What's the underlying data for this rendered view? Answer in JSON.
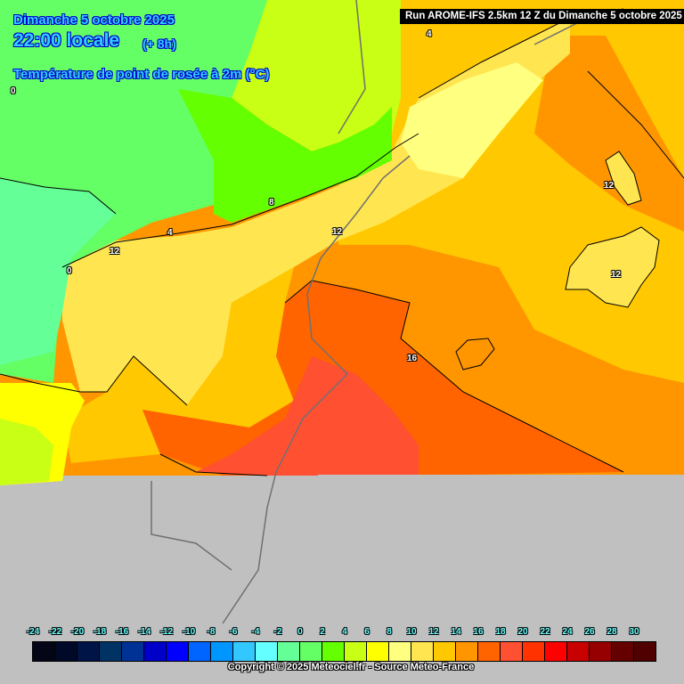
{
  "header": {
    "date": "Dimanche 5 octobre 2025",
    "time": "22:00 locale",
    "lead": "(+ 8h)",
    "parameter": "Température de point de rosée à 2m (°C)",
    "run": "Run AROME-IFS 2.5km 12 Z du Dimanche 5 octobre 2025"
  },
  "contour_labels": [
    "4",
    "0",
    "8",
    "4",
    "12",
    "12",
    "0",
    "12",
    "12",
    "16"
  ],
  "legend": {
    "ticks": [
      "-24",
      "-22",
      "-20",
      "-18",
      "-16",
      "-14",
      "-12",
      "-10",
      "-8",
      "-6",
      "-4",
      "-2",
      "0",
      "2",
      "4",
      "6",
      "8",
      "10",
      "12",
      "14",
      "16",
      "18",
      "20",
      "22",
      "24",
      "26",
      "28",
      "30"
    ],
    "colors": [
      "#050518",
      "#000a28",
      "#001448",
      "#003264",
      "#003296",
      "#0000c8",
      "#0000ff",
      "#0064ff",
      "#0096ff",
      "#32c8ff",
      "#64ffff",
      "#64ff96",
      "#64ff64",
      "#64ff00",
      "#c8ff14",
      "#ffff00",
      "#ffff80",
      "#ffe650",
      "#ffc800",
      "#ff9600",
      "#ff6400",
      "#ff5032",
      "#ff3200",
      "#ff0000",
      "#c80000",
      "#960000",
      "#640000",
      "#500000"
    ]
  },
  "copyright": "Copyright © 2025 Meteociel.fr - Source Meteo-France",
  "colors": {
    "no_data": "#c0c0c0",
    "title": "#33ccff"
  }
}
